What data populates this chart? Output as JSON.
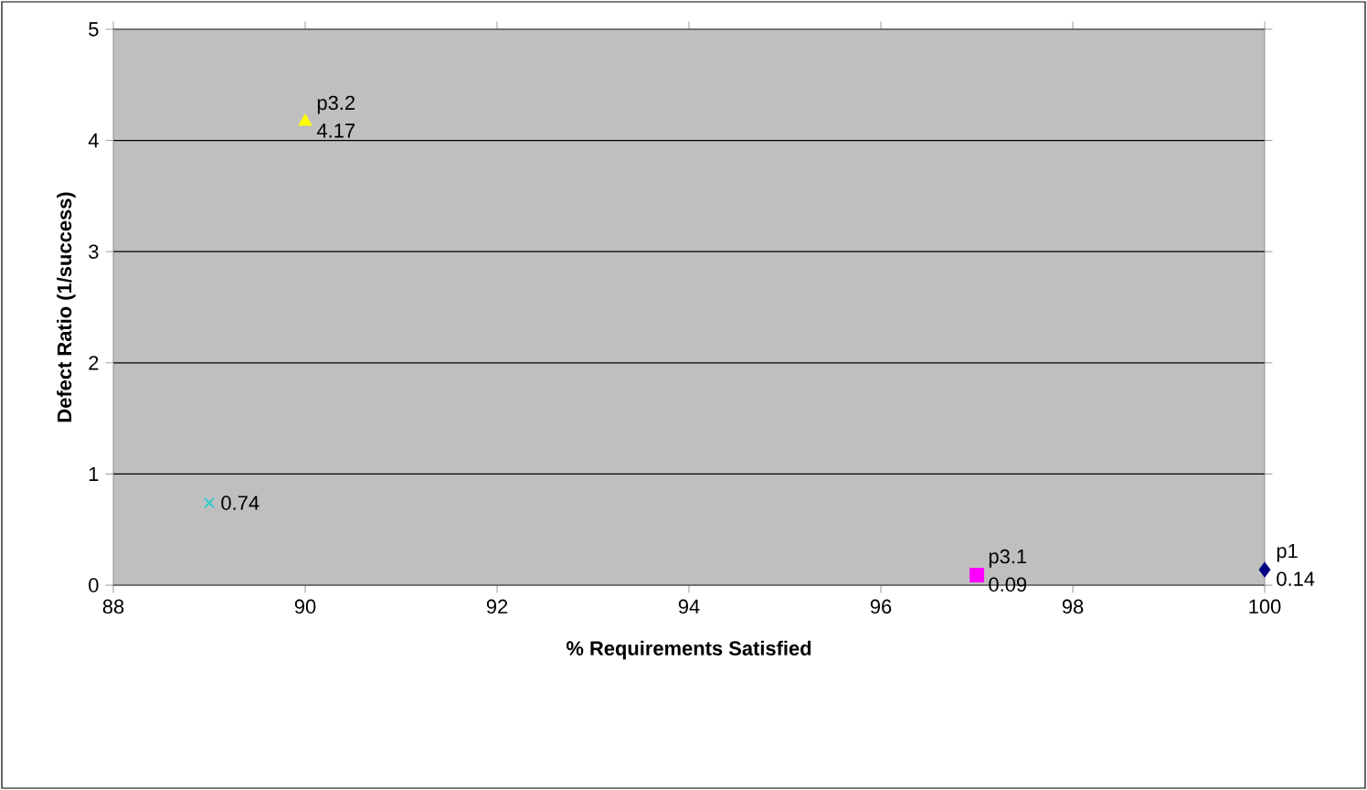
{
  "chart_data": {
    "type": "scatter",
    "xlabel": "% Requirements Satisfied",
    "ylabel": "Defect Ratio (1/success)",
    "xlim": [
      88,
      100
    ],
    "xticks": [
      88,
      90,
      92,
      94,
      96,
      98,
      100
    ],
    "ylim": [
      0,
      5
    ],
    "yticks": [
      0,
      1,
      2,
      3,
      4,
      5
    ],
    "grid": "y",
    "data_labels": true,
    "series": [
      {
        "name": "p1",
        "color": "#000080",
        "marker": "diamond",
        "x": [
          100
        ],
        "values": [
          0.14
        ]
      },
      {
        "name": "p3.1",
        "color": "#ff00ff",
        "marker": "square",
        "x": [
          97
        ],
        "values": [
          0.09
        ]
      },
      {
        "name": "p3.2",
        "color": "#ffff00",
        "marker": "triangle",
        "x": [
          90
        ],
        "values": [
          4.17
        ]
      },
      {
        "color": "#33cccc",
        "marker": "cross",
        "x": [
          89
        ],
        "values": [
          0.74
        ]
      }
    ]
  }
}
